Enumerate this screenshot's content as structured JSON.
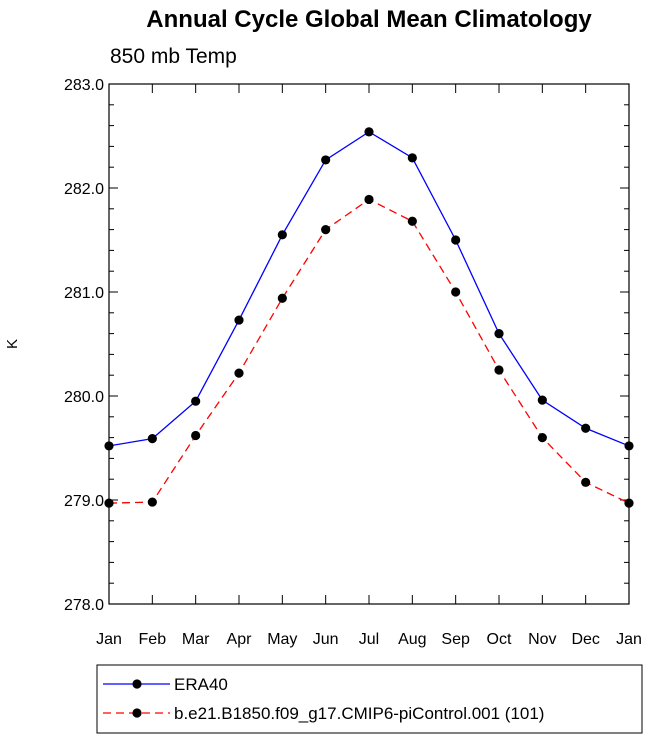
{
  "chart_data": {
    "type": "line",
    "title": "Annual Cycle Global Mean Climatology",
    "subtitle": "850 mb Temp",
    "xlabel": "",
    "ylabel": "K",
    "categories": [
      "Jan",
      "Feb",
      "Mar",
      "Apr",
      "May",
      "Jun",
      "Jul",
      "Aug",
      "Sep",
      "Oct",
      "Nov",
      "Dec",
      "Jan"
    ],
    "ylim": [
      278.0,
      283.0
    ],
    "yticks": [
      "278.0",
      "279.0",
      "280.0",
      "281.0",
      "282.0",
      "283.0"
    ],
    "grid": false,
    "legend_position": "bottom",
    "series": [
      {
        "name": "ERA40",
        "color": "#0000ff",
        "line_style": "solid",
        "marker": "filled-circle",
        "values": [
          279.52,
          279.59,
          279.95,
          280.73,
          281.55,
          282.27,
          282.54,
          282.29,
          281.5,
          280.6,
          279.96,
          279.69,
          279.52
        ]
      },
      {
        "name": "b.e21.B1850.f09_g17.CMIP6-piControl.001 (101)",
        "color": "#ff0000",
        "line_style": "dashed",
        "marker": "filled-circle",
        "values": [
          278.97,
          278.98,
          279.62,
          280.22,
          280.94,
          281.6,
          281.89,
          281.68,
          281.0,
          280.25,
          279.6,
          279.17,
          278.97
        ]
      }
    ]
  }
}
